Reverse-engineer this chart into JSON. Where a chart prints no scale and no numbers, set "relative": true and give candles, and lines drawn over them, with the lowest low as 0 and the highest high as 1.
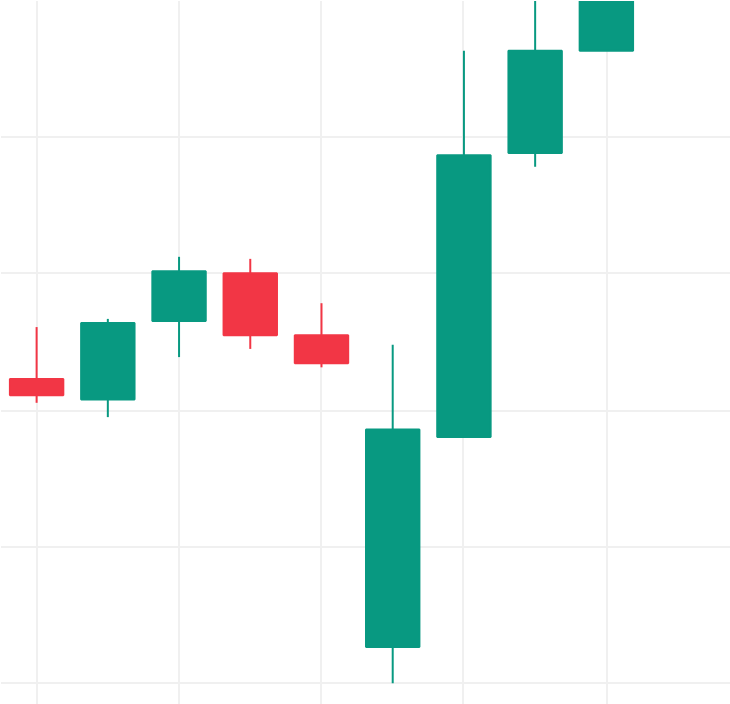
{
  "chart_data": {
    "type": "candlestick",
    "relative": true,
    "grid": true,
    "categories": [
      null,
      null,
      null,
      null,
      null,
      null,
      null,
      null,
      null
    ],
    "ohlc": [
      [
        0.446,
        0.522,
        0.411,
        0.422
      ],
      [
        0.416,
        0.534,
        0.39,
        0.528
      ],
      [
        0.531,
        0.625,
        0.478,
        0.604
      ],
      [
        0.601,
        0.622,
        0.49,
        0.51
      ],
      [
        0.51,
        0.557,
        0.463,
        0.469
      ],
      [
        0.053,
        0.496,
        0.0,
        0.372
      ],
      [
        0.361,
        0.927,
        0.361,
        0.774
      ],
      [
        0.777,
        1.0,
        0.757,
        0.927
      ],
      [
        0.927,
        1.0,
        0.927,
        1.0
      ]
    ],
    "colors": [
      "#f23645",
      "#089981",
      "#089981",
      "#f23645",
      "#f23645",
      "#089981",
      "#089981",
      "#089981",
      "#089981"
    ]
  }
}
